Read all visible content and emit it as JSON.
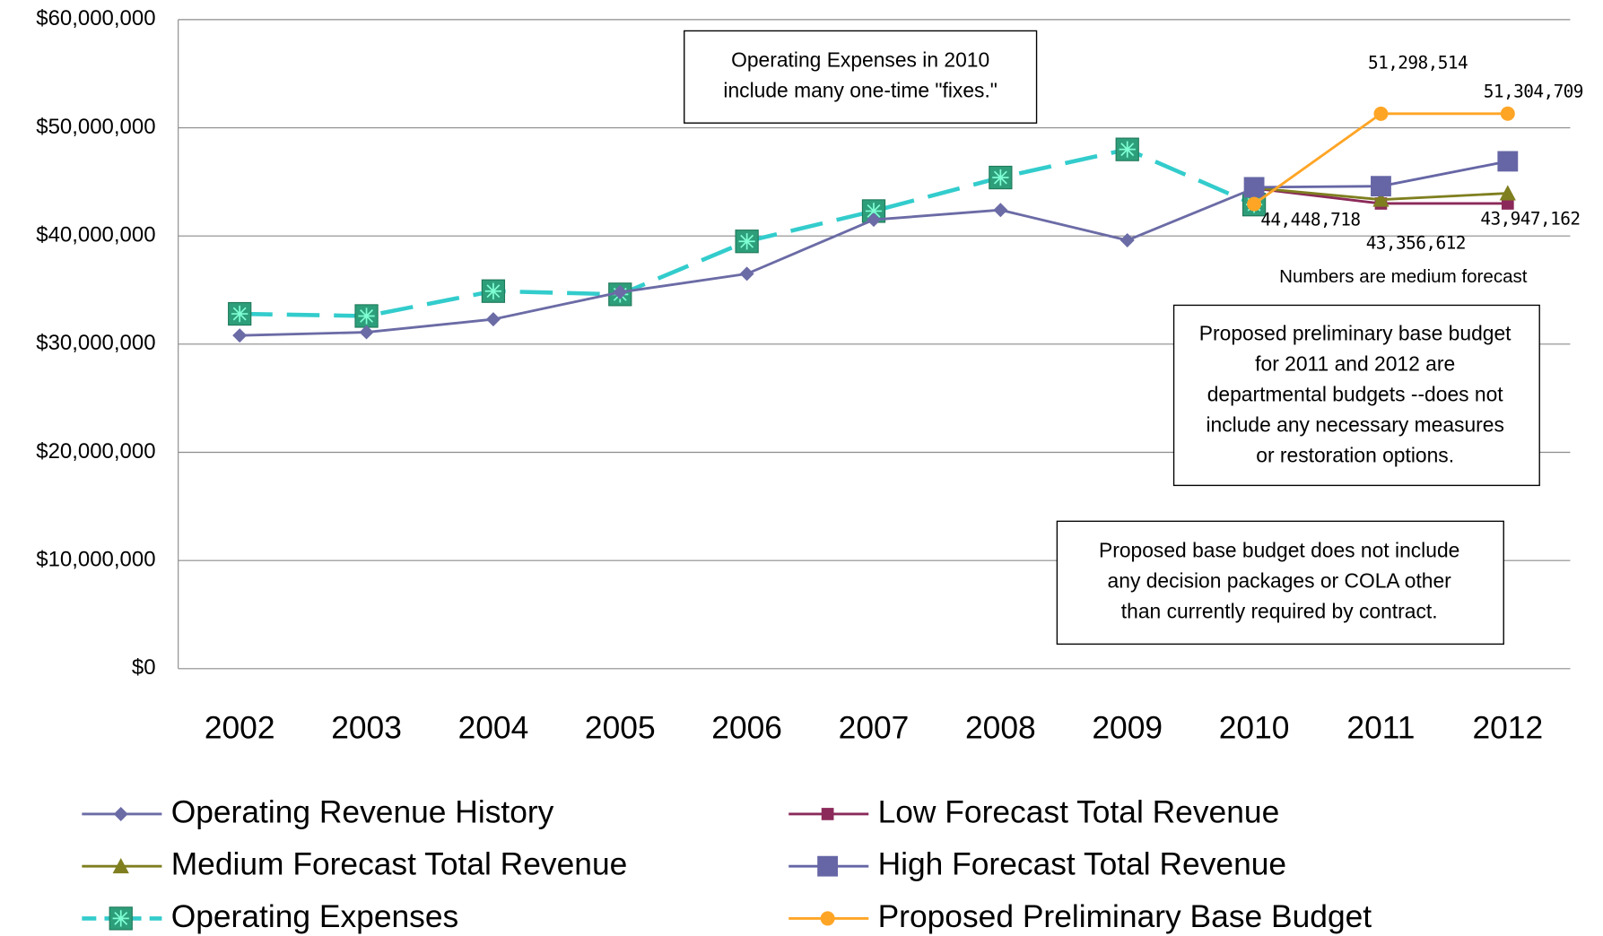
{
  "chart_data": {
    "type": "line",
    "categories": [
      "2002",
      "2003",
      "2004",
      "2005",
      "2006",
      "2007",
      "2008",
      "2009",
      "2010",
      "2011",
      "2012"
    ],
    "ylim": [
      0,
      60000000
    ],
    "yticks": [
      {
        "value": 0,
        "label": "$0"
      },
      {
        "value": 10000000,
        "label": "$10,000,000"
      },
      {
        "value": 20000000,
        "label": "$20,000,000"
      },
      {
        "value": 30000000,
        "label": "$30,000,000"
      },
      {
        "value": 40000000,
        "label": "$40,000,000"
      },
      {
        "value": 50000000,
        "label": "$50,000,000"
      },
      {
        "value": 60000000,
        "label": "$60,000,000"
      }
    ],
    "grid": true,
    "legend": "bottom",
    "series": [
      {
        "name": "Operating Revenue History",
        "color": "#6b6ba6",
        "marker": "diamond",
        "values": [
          30800000,
          31100000,
          32300000,
          34800000,
          36500000,
          41500000,
          42400000,
          39600000,
          44400000,
          null,
          null
        ]
      },
      {
        "name": "Low Forecast Total Revenue",
        "color": "#8b2a5a",
        "marker": "square",
        "values": [
          null,
          null,
          null,
          null,
          null,
          null,
          null,
          null,
          44400000,
          43000000,
          43000000
        ]
      },
      {
        "name": "Medium Forecast Total Revenue",
        "color": "#7f7f20",
        "marker": "triangle",
        "values": [
          null,
          null,
          null,
          null,
          null,
          null,
          null,
          null,
          44448718,
          43356612,
          43947162
        ],
        "value_labels": [
          null,
          null,
          null,
          null,
          null,
          null,
          null,
          null,
          "44,448,718",
          "43,356,612",
          "43,947,162"
        ]
      },
      {
        "name": "High Forecast Total Revenue",
        "color": "#6666a6",
        "marker": "big-square",
        "values": [
          null,
          null,
          null,
          null,
          null,
          null,
          null,
          null,
          44500000,
          44600000,
          46900000
        ]
      },
      {
        "name": "Operating Expenses",
        "color": "#33cccc",
        "marker": "star-square",
        "dashed": true,
        "values": [
          32800000,
          32600000,
          34900000,
          34600000,
          39500000,
          42300000,
          45400000,
          48000000,
          42900000,
          null,
          null
        ]
      },
      {
        "name": "Proposed Preliminary Base Budget",
        "color": "#ffa526",
        "marker": "circle",
        "values": [
          null,
          null,
          null,
          null,
          null,
          null,
          null,
          null,
          42950000,
          51298514,
          51304709
        ],
        "value_labels": [
          null,
          null,
          null,
          null,
          null,
          null,
          null,
          null,
          null,
          "51,298,514",
          "51,304,709"
        ]
      }
    ],
    "annotations": [
      {
        "lines": [
          "Operating Expenses in 2010",
          "include many one-time \"fixes.\""
        ],
        "color": "#ff0000",
        "boxed": true
      },
      {
        "lines": [
          "Numbers are medium forecast"
        ],
        "boxed": false
      },
      {
        "lines": [
          "Proposed preliminary base budget",
          "for 2011 and 2012 are",
          "departmental budgets --does not",
          "include any necessary measures",
          "or restoration options."
        ],
        "boxed": true
      },
      {
        "lines": [
          "Proposed base budget does not include",
          "any decision packages or COLA other",
          "than currently required by contract."
        ],
        "boxed": true
      }
    ]
  }
}
